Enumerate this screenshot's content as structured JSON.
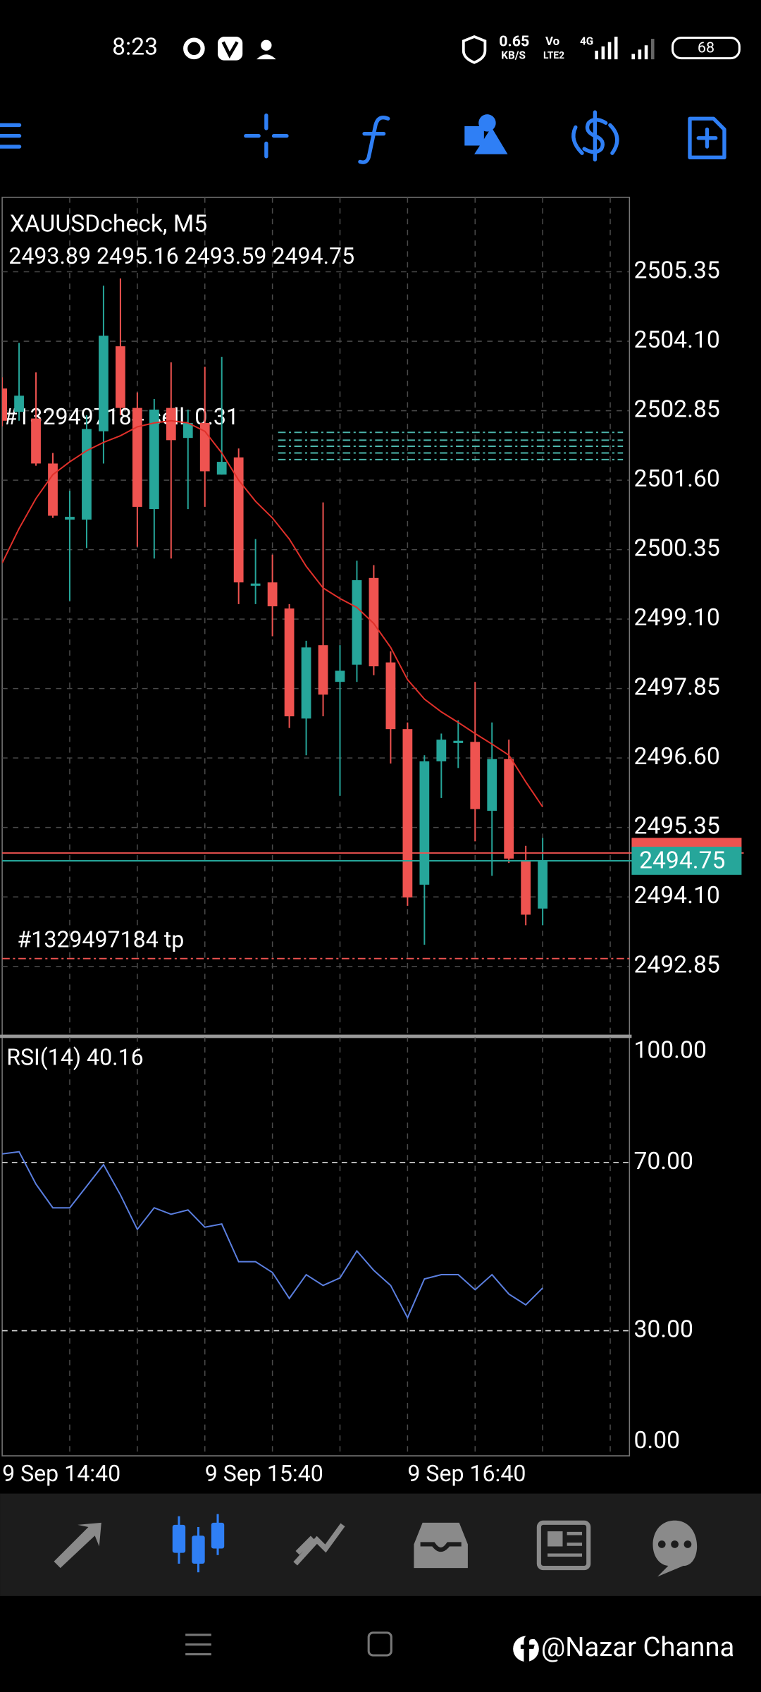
{
  "status_bar": {
    "time": "8:23",
    "speed": "0.65",
    "speed_unit": "KB/S",
    "volte": "Vo",
    "lte": "LTE2",
    "network": "4G",
    "battery": "68"
  },
  "chart_data": [
    {
      "type": "candlestick",
      "title": "XAUUSDcheck, M5",
      "ohlc_label": "2493.89 2495.16 2493.59 2494.75",
      "open": [
        2503.25,
        2502.83,
        2502.71,
        2501.9,
        2500.89,
        2500.89,
        2502.48,
        2504.01,
        2502.9,
        2501.08,
        2502.9,
        2502.36,
        2502.63,
        2501.7,
        2502.01,
        2499.7,
        2499.76,
        2499.29,
        2497.31,
        2498.63,
        2497.97,
        2498.28,
        2499.84,
        2498.32,
        2497.12,
        2494.32,
        2496.54,
        2496.87,
        2496.89,
        2495.65,
        2496.58,
        2494.75,
        2493.89
      ],
      "high": [
        2503.45,
        2504.07,
        2503.54,
        2502.09,
        2501.41,
        2502.77,
        2505.1,
        2505.23,
        2503.18,
        2503.06,
        2503.72,
        2502.87,
        2503.64,
        2503.82,
        2502.17,
        2500.54,
        2500.26,
        2499.37,
        2498.71,
        2501.2,
        2498.63,
        2500.15,
        2500.07,
        2498.52,
        2497.24,
        2496.65,
        2497.04,
        2497.28,
        2497.97,
        2497.24,
        2496.93,
        2495.02,
        2495.16
      ],
      "low": [
        2502.57,
        2502.67,
        2501.86,
        2500.92,
        2499.43,
        2500.38,
        2501.9,
        2502.77,
        2500.4,
        2500.19,
        2500.19,
        2501.08,
        2501.12,
        2501.7,
        2499.37,
        2499.37,
        2498.79,
        2497.14,
        2496.65,
        2497.35,
        2495.92,
        2497.97,
        2498.09,
        2496.5,
        2493.94,
        2493.24,
        2495.88,
        2496.42,
        2495.1,
        2494.48,
        2494.71,
        2493.59,
        2493.59
      ],
      "close": [
        2502.67,
        2503.12,
        2501.9,
        2500.96,
        2500.94,
        2502.52,
        2504.2,
        2502.9,
        2501.12,
        2502.87,
        2502.32,
        2502.63,
        2501.76,
        2501.93,
        2499.76,
        2499.74,
        2499.33,
        2497.35,
        2498.59,
        2497.74,
        2498.17,
        2499.8,
        2498.25,
        2497.12,
        2494.09,
        2496.54,
        2496.93,
        2496.91,
        2495.68,
        2496.58,
        2494.79,
        2493.78,
        2494.75
      ],
      "up_color": "#26a69a",
      "down_color": "#ef5350",
      "ma": {
        "color": "#e0302a",
        "values": [
          2500.11,
          2500.73,
          2501.27,
          2501.7,
          2501.93,
          2502.13,
          2502.28,
          2502.4,
          2502.56,
          2502.63,
          2502.67,
          2502.63,
          2502.48,
          2502.09,
          2501.6,
          2501.22,
          2500.92,
          2500.54,
          2500.05,
          2499.66,
          2499.47,
          2499.31,
          2499.02,
          2498.59,
          2498.01,
          2497.66,
          2497.43,
          2497.24,
          2497.04,
          2496.85,
          2496.65,
          2496.17,
          2495.72
        ]
      },
      "ylim": [
        2491.61,
        2506.69
      ],
      "yticks": [
        2505.35,
        {
          "value": 2504.1,
          "label": "2504.10"
        },
        2502.85,
        {
          "value": 2501.6,
          "label": "2501.60"
        },
        2500.35,
        {
          "value": 2499.1,
          "label": "2499.10"
        },
        2497.85,
        {
          "value": 2496.6,
          "label": "2496.60"
        },
        2495.35,
        {
          "value": 2494.1,
          "label": "2494.10"
        },
        2492.85
      ],
      "xlim": [
        0,
        37.14
      ],
      "xticks": [
        {
          "value": 0,
          "label": "9 Sep 14:40"
        },
        {
          "value": 12,
          "label": "9 Sep 15:40"
        },
        {
          "value": 24,
          "label": "9 Sep 16:40"
        }
      ],
      "grid": true,
      "bid": 2494.75,
      "bid_color": "#26a69a",
      "ask": 2494.89,
      "ask_color": "#ef5350",
      "orders": [
        {
          "label": "#1329497184 sell, 0.31",
          "price": 2502.46,
          "color": "#4db6ac"
        },
        {
          "price": 2502.32,
          "color": "#4db6ac"
        },
        {
          "price": 2502.21,
          "color": "#4db6ac"
        },
        {
          "price": 2502.09,
          "color": "#4db6ac"
        },
        {
          "price": 2501.97,
          "color": "#4db6ac"
        },
        {
          "label": "#1329497184 tp",
          "price": 2492.99,
          "color": "#ef5350"
        }
      ]
    },
    {
      "type": "line",
      "title": "RSI(14) 40.16",
      "color": "#5b7fe0",
      "values": [
        72.05,
        72.56,
        64.87,
        59.23,
        59.23,
        64.36,
        69.49,
        62.31,
        54.1,
        59.23,
        57.69,
        58.72,
        54.62,
        55.38,
        46.41,
        46.41,
        43.85,
        37.69,
        43.33,
        40.77,
        42.56,
        48.97,
        44.36,
        40.77,
        33.08,
        42.31,
        43.33,
        43.33,
        39.74,
        43.33,
        38.72,
        36.15,
        40.16
      ],
      "ylim": [
        0,
        100
      ],
      "yticks": [
        {
          "value": 100,
          "label": "100.00"
        },
        {
          "value": 70,
          "label": "70.00"
        },
        {
          "value": 30,
          "label": "30.00"
        },
        {
          "value": 0,
          "label": "0.00"
        }
      ]
    }
  ],
  "watermark": "@Nazar Channa"
}
